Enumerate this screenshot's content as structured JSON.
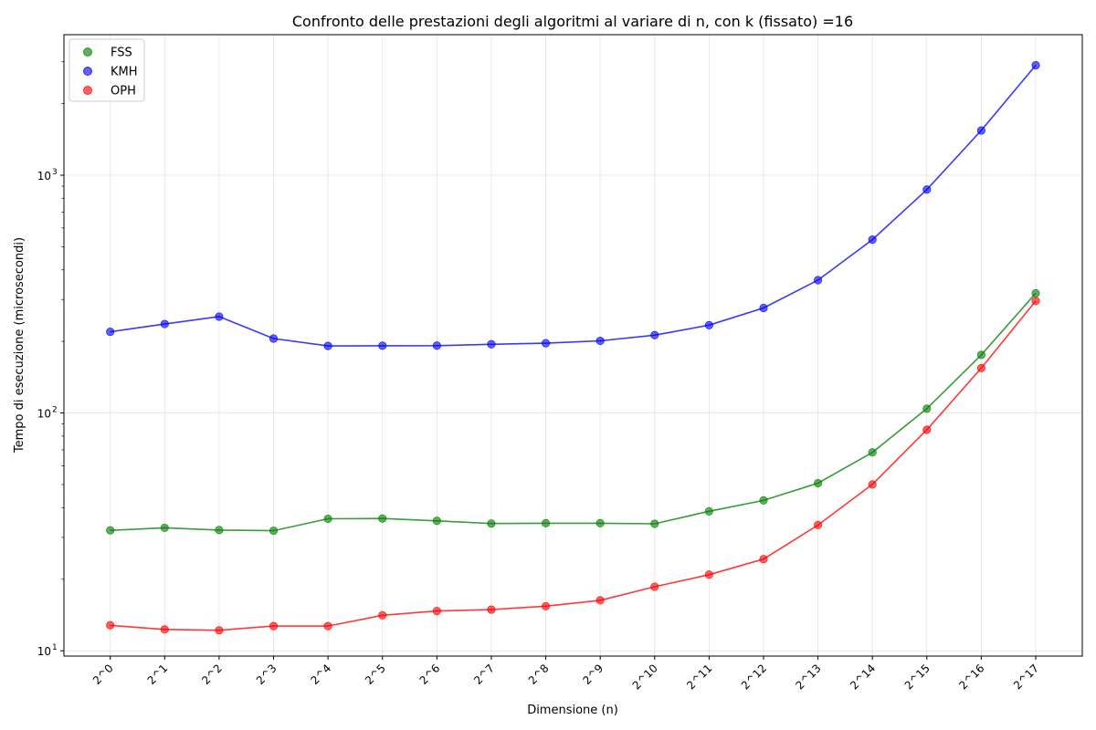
{
  "chart_data": {
    "type": "line",
    "title": "Confronto delle prestazioni degli algoritmi al variare di n,    con k (fissato) =16",
    "xlabel": "Dimensione (n)",
    "ylabel": "Tempo di esecuzione (microsecondi)",
    "yscale": "log",
    "ylim": [
      9.5,
      3900
    ],
    "ytick_values": [
      10,
      100,
      1000
    ],
    "ytick_labels": [
      "10",
      "10",
      "10"
    ],
    "ytick_exponents": [
      "1",
      "2",
      "3"
    ],
    "grid": true,
    "legend_position": "top-left",
    "categories": [
      "2^0",
      "2^1",
      "2^2",
      "2^3",
      "2^4",
      "2^5",
      "2^6",
      "2^7",
      "2^8",
      "2^9",
      "2^10",
      "2^11",
      "2^12",
      "2^13",
      "2^14",
      "2^15",
      "2^16",
      "2^17"
    ],
    "series": [
      {
        "name": "FSS",
        "color": "#008000",
        "values": [
          32.1,
          32.9,
          32.2,
          32.0,
          35.9,
          36.0,
          35.2,
          34.3,
          34.4,
          34.4,
          34.2,
          38.6,
          42.9,
          50.7,
          68.3,
          104.3,
          175.6,
          319.0
        ]
      },
      {
        "name": "KMH",
        "color": "#0000ff",
        "values": [
          219.6,
          236.8,
          254.4,
          205.7,
          191.4,
          191.8,
          192.0,
          194.6,
          196.6,
          201.1,
          212.6,
          234.1,
          276.6,
          362.1,
          535.8,
          870.1,
          1542.9,
          2900.0
        ]
      },
      {
        "name": "OPH",
        "color": "#ff0000",
        "values": [
          12.8,
          12.3,
          12.2,
          12.7,
          12.7,
          14.1,
          14.7,
          14.9,
          15.4,
          16.3,
          18.6,
          20.9,
          24.3,
          33.8,
          50.1,
          85.0,
          154.5,
          296.0
        ]
      }
    ]
  }
}
